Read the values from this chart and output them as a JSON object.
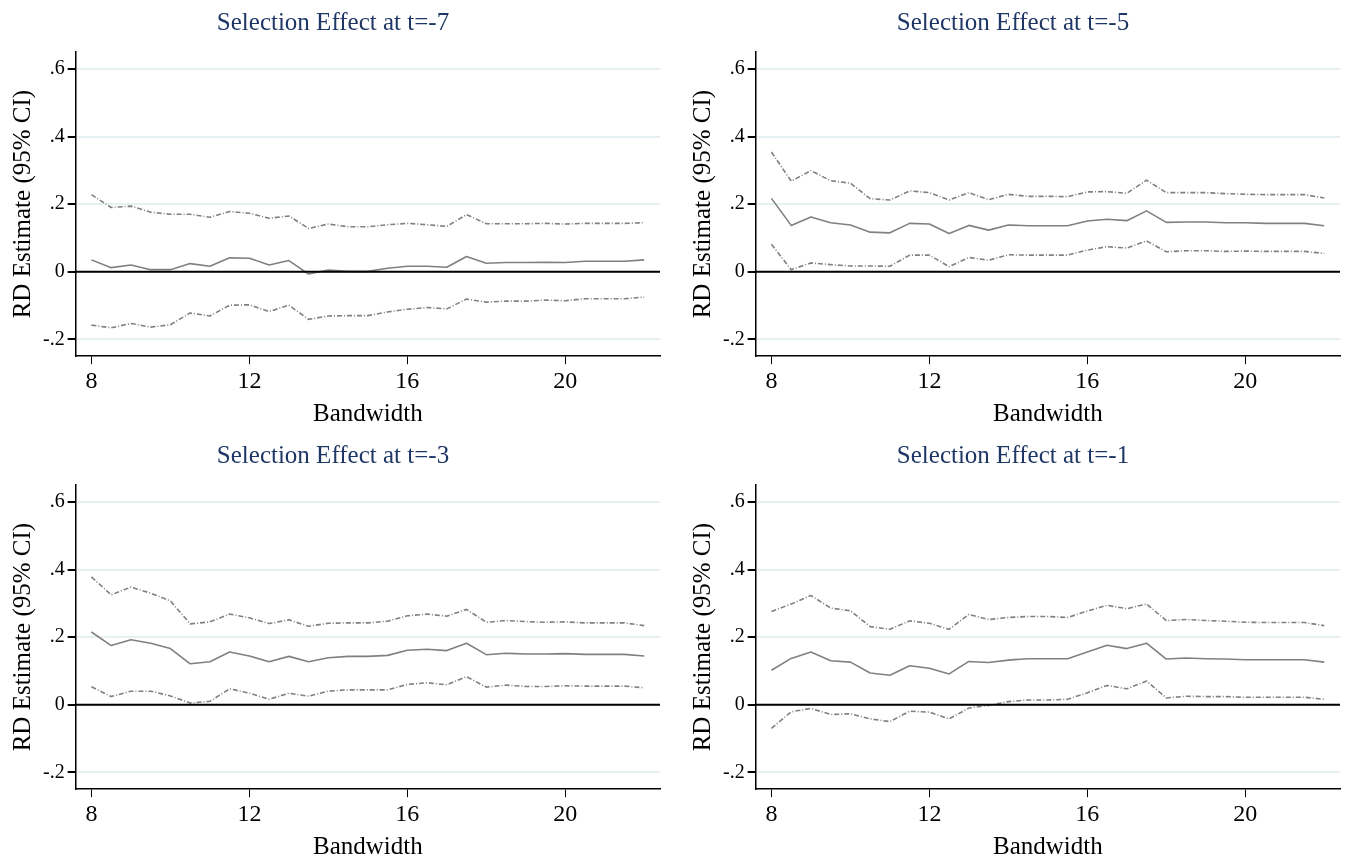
{
  "chart_data": [
    {
      "type": "line",
      "title": "Selection Effect at t=-7",
      "xlabel": "Bandwidth",
      "ylabel": "RD Estimate (95% CI)",
      "xlim": [
        7.6,
        22.4
      ],
      "xticks": [
        8,
        12,
        16,
        20
      ],
      "ylim": [
        -0.25,
        0.65
      ],
      "yticks": [
        {
          "value": -0.2,
          "label": "-.2"
        },
        {
          "value": 0,
          "label": "0"
        },
        {
          "value": 0.2,
          "label": ".2"
        },
        {
          "value": 0.4,
          "label": ".4"
        },
        {
          "value": 0.6,
          "label": ".6"
        }
      ],
      "grid": "y",
      "marker": "none",
      "ref_lines": [
        {
          "axis": "y",
          "value": 0,
          "color": "#000000"
        }
      ],
      "x": [
        8,
        8.5,
        9,
        9.5,
        10,
        10.5,
        11,
        11.5,
        12,
        12.5,
        13,
        13.5,
        14,
        14.5,
        15,
        15.5,
        16,
        16.5,
        17,
        17.5,
        18,
        18.5,
        19,
        19.5,
        20,
        20.5,
        21,
        21.5,
        22
      ],
      "series": [
        {
          "color": "#808080",
          "line_style": "dashed",
          "values": [
            0.228,
            0.19,
            0.194,
            0.176,
            0.17,
            0.17,
            0.161,
            0.178,
            0.173,
            0.158,
            0.165,
            0.128,
            0.141,
            0.133,
            0.133,
            0.139,
            0.143,
            0.139,
            0.134,
            0.169,
            0.142,
            0.142,
            0.142,
            0.143,
            0.141,
            0.143,
            0.143,
            0.143,
            0.145
          ]
        },
        {
          "color": "#808080",
          "line_style": "solid",
          "values": [
            0.035,
            0.012,
            0.02,
            0.006,
            0.006,
            0.024,
            0.016,
            0.041,
            0.04,
            0.02,
            0.033,
            -0.007,
            0.005,
            0.001,
            0.001,
            0.01,
            0.016,
            0.016,
            0.013,
            0.045,
            0.025,
            0.027,
            0.027,
            0.028,
            0.027,
            0.031,
            0.031,
            0.031,
            0.035
          ]
        },
        {
          "color": "#808080",
          "line_style": "dashed",
          "values": [
            -0.158,
            -0.166,
            -0.153,
            -0.164,
            -0.157,
            -0.122,
            -0.131,
            -0.099,
            -0.098,
            -0.118,
            -0.099,
            -0.141,
            -0.131,
            -0.13,
            -0.13,
            -0.119,
            -0.111,
            -0.106,
            -0.11,
            -0.081,
            -0.09,
            -0.087,
            -0.087,
            -0.084,
            -0.086,
            -0.08,
            -0.08,
            -0.08,
            -0.075
          ]
        }
      ]
    },
    {
      "type": "line",
      "title": "Selection Effect at t=-5",
      "xlabel": "Bandwidth",
      "ylabel": "RD Estimate (95% CI)",
      "xlim": [
        7.6,
        22.4
      ],
      "xticks": [
        8,
        12,
        16,
        20
      ],
      "ylim": [
        -0.25,
        0.65
      ],
      "yticks": [
        {
          "value": -0.2,
          "label": "-.2"
        },
        {
          "value": 0,
          "label": "0"
        },
        {
          "value": 0.2,
          "label": ".2"
        },
        {
          "value": 0.4,
          "label": ".4"
        },
        {
          "value": 0.6,
          "label": ".6"
        }
      ],
      "grid": "y",
      "marker": "none",
      "ref_lines": [
        {
          "axis": "y",
          "value": 0,
          "color": "#000000"
        }
      ],
      "x": [
        8,
        8.5,
        9,
        9.5,
        10,
        10.5,
        11,
        11.5,
        12,
        12.5,
        13,
        13.5,
        14,
        14.5,
        15,
        15.5,
        16,
        16.5,
        17,
        17.5,
        18,
        18.5,
        19,
        19.5,
        20,
        20.5,
        21,
        21.5,
        22
      ],
      "series": [
        {
          "color": "#808080",
          "line_style": "dashed",
          "values": [
            0.354,
            0.268,
            0.299,
            0.269,
            0.262,
            0.216,
            0.212,
            0.239,
            0.234,
            0.212,
            0.234,
            0.213,
            0.229,
            0.223,
            0.223,
            0.222,
            0.236,
            0.237,
            0.232,
            0.271,
            0.234,
            0.234,
            0.234,
            0.231,
            0.229,
            0.228,
            0.228,
            0.228,
            0.218
          ]
        },
        {
          "color": "#808080",
          "line_style": "solid",
          "values": [
            0.217,
            0.137,
            0.162,
            0.145,
            0.138,
            0.117,
            0.115,
            0.143,
            0.141,
            0.113,
            0.137,
            0.123,
            0.138,
            0.136,
            0.136,
            0.136,
            0.15,
            0.155,
            0.151,
            0.18,
            0.146,
            0.147,
            0.147,
            0.145,
            0.145,
            0.143,
            0.143,
            0.143,
            0.136
          ]
        },
        {
          "color": "#808080",
          "line_style": "dashed",
          "values": [
            0.081,
            0.006,
            0.026,
            0.021,
            0.017,
            0.017,
            0.016,
            0.049,
            0.049,
            0.015,
            0.042,
            0.034,
            0.05,
            0.049,
            0.049,
            0.049,
            0.064,
            0.074,
            0.07,
            0.091,
            0.059,
            0.062,
            0.062,
            0.06,
            0.061,
            0.06,
            0.06,
            0.06,
            0.054
          ]
        }
      ]
    },
    {
      "type": "line",
      "title": "Selection Effect at t=-3",
      "xlabel": "Bandwidth",
      "ylabel": "RD Estimate (95% CI)",
      "xlim": [
        7.6,
        22.4
      ],
      "xticks": [
        8,
        12,
        16,
        20
      ],
      "ylim": [
        -0.25,
        0.65
      ],
      "yticks": [
        {
          "value": -0.2,
          "label": "-.2"
        },
        {
          "value": 0,
          "label": "0"
        },
        {
          "value": 0.2,
          "label": ".2"
        },
        {
          "value": 0.4,
          "label": ".4"
        },
        {
          "value": 0.6,
          "label": ".6"
        }
      ],
      "grid": "y",
      "marker": "none",
      "ref_lines": [
        {
          "axis": "y",
          "value": 0,
          "color": "#000000"
        }
      ],
      "x": [
        8,
        8.5,
        9,
        9.5,
        10,
        10.5,
        11,
        11.5,
        12,
        12.5,
        13,
        13.5,
        14,
        14.5,
        15,
        15.5,
        16,
        16.5,
        17,
        17.5,
        18,
        18.5,
        19,
        19.5,
        20,
        20.5,
        21,
        21.5,
        22
      ],
      "series": [
        {
          "color": "#808080",
          "line_style": "dashed",
          "values": [
            0.378,
            0.325,
            0.348,
            0.33,
            0.307,
            0.239,
            0.245,
            0.268,
            0.257,
            0.24,
            0.251,
            0.232,
            0.241,
            0.242,
            0.242,
            0.247,
            0.263,
            0.268,
            0.262,
            0.282,
            0.244,
            0.249,
            0.246,
            0.244,
            0.245,
            0.242,
            0.242,
            0.242,
            0.234
          ]
        },
        {
          "color": "#808080",
          "line_style": "solid",
          "values": [
            0.215,
            0.175,
            0.192,
            0.182,
            0.166,
            0.121,
            0.127,
            0.156,
            0.144,
            0.127,
            0.143,
            0.127,
            0.139,
            0.143,
            0.143,
            0.146,
            0.161,
            0.164,
            0.16,
            0.182,
            0.148,
            0.152,
            0.15,
            0.15,
            0.151,
            0.149,
            0.149,
            0.149,
            0.144
          ]
        },
        {
          "color": "#808080",
          "line_style": "dashed",
          "values": [
            0.053,
            0.024,
            0.04,
            0.04,
            0.026,
            0.005,
            0.01,
            0.047,
            0.034,
            0.016,
            0.034,
            0.025,
            0.04,
            0.044,
            0.044,
            0.044,
            0.06,
            0.065,
            0.059,
            0.083,
            0.052,
            0.058,
            0.054,
            0.054,
            0.056,
            0.055,
            0.055,
            0.055,
            0.05
          ]
        }
      ]
    },
    {
      "type": "line",
      "title": "Selection Effect at t=-1",
      "xlabel": "Bandwidth",
      "ylabel": "RD Estimate (95% CI)",
      "xlim": [
        7.6,
        22.4
      ],
      "xticks": [
        8,
        12,
        16,
        20
      ],
      "ylim": [
        -0.25,
        0.65
      ],
      "yticks": [
        {
          "value": -0.2,
          "label": "-.2"
        },
        {
          "value": 0,
          "label": "0"
        },
        {
          "value": 0.2,
          "label": ".2"
        },
        {
          "value": 0.4,
          "label": ".4"
        },
        {
          "value": 0.6,
          "label": ".6"
        }
      ],
      "grid": "y",
      "marker": "none",
      "ref_lines": [
        {
          "axis": "y",
          "value": 0,
          "color": "#000000"
        }
      ],
      "x": [
        8,
        8.5,
        9,
        9.5,
        10,
        10.5,
        11,
        11.5,
        12,
        12.5,
        13,
        13.5,
        14,
        14.5,
        15,
        15.5,
        16,
        16.5,
        17,
        17.5,
        18,
        18.5,
        19,
        19.5,
        20,
        20.5,
        21,
        21.5,
        22
      ],
      "series": [
        {
          "color": "#808080",
          "line_style": "dashed",
          "values": [
            0.276,
            0.298,
            0.323,
            0.286,
            0.278,
            0.231,
            0.223,
            0.248,
            0.241,
            0.223,
            0.267,
            0.252,
            0.258,
            0.261,
            0.261,
            0.258,
            0.277,
            0.294,
            0.284,
            0.298,
            0.249,
            0.252,
            0.249,
            0.247,
            0.244,
            0.243,
            0.243,
            0.243,
            0.234
          ]
        },
        {
          "color": "#808080",
          "line_style": "solid",
          "values": [
            0.102,
            0.137,
            0.156,
            0.13,
            0.126,
            0.094,
            0.087,
            0.115,
            0.108,
            0.091,
            0.128,
            0.125,
            0.132,
            0.136,
            0.136,
            0.136,
            0.156,
            0.176,
            0.166,
            0.182,
            0.135,
            0.138,
            0.136,
            0.135,
            0.133,
            0.133,
            0.133,
            0.133,
            0.126
          ]
        },
        {
          "color": "#808080",
          "line_style": "dashed",
          "values": [
            -0.07,
            -0.021,
            -0.011,
            -0.029,
            -0.027,
            -0.042,
            -0.05,
            -0.019,
            -0.022,
            -0.042,
            -0.01,
            -0.002,
            0.009,
            0.014,
            0.014,
            0.016,
            0.035,
            0.057,
            0.047,
            0.07,
            0.02,
            0.025,
            0.024,
            0.024,
            0.022,
            0.022,
            0.022,
            0.022,
            0.016
          ]
        }
      ]
    }
  ]
}
